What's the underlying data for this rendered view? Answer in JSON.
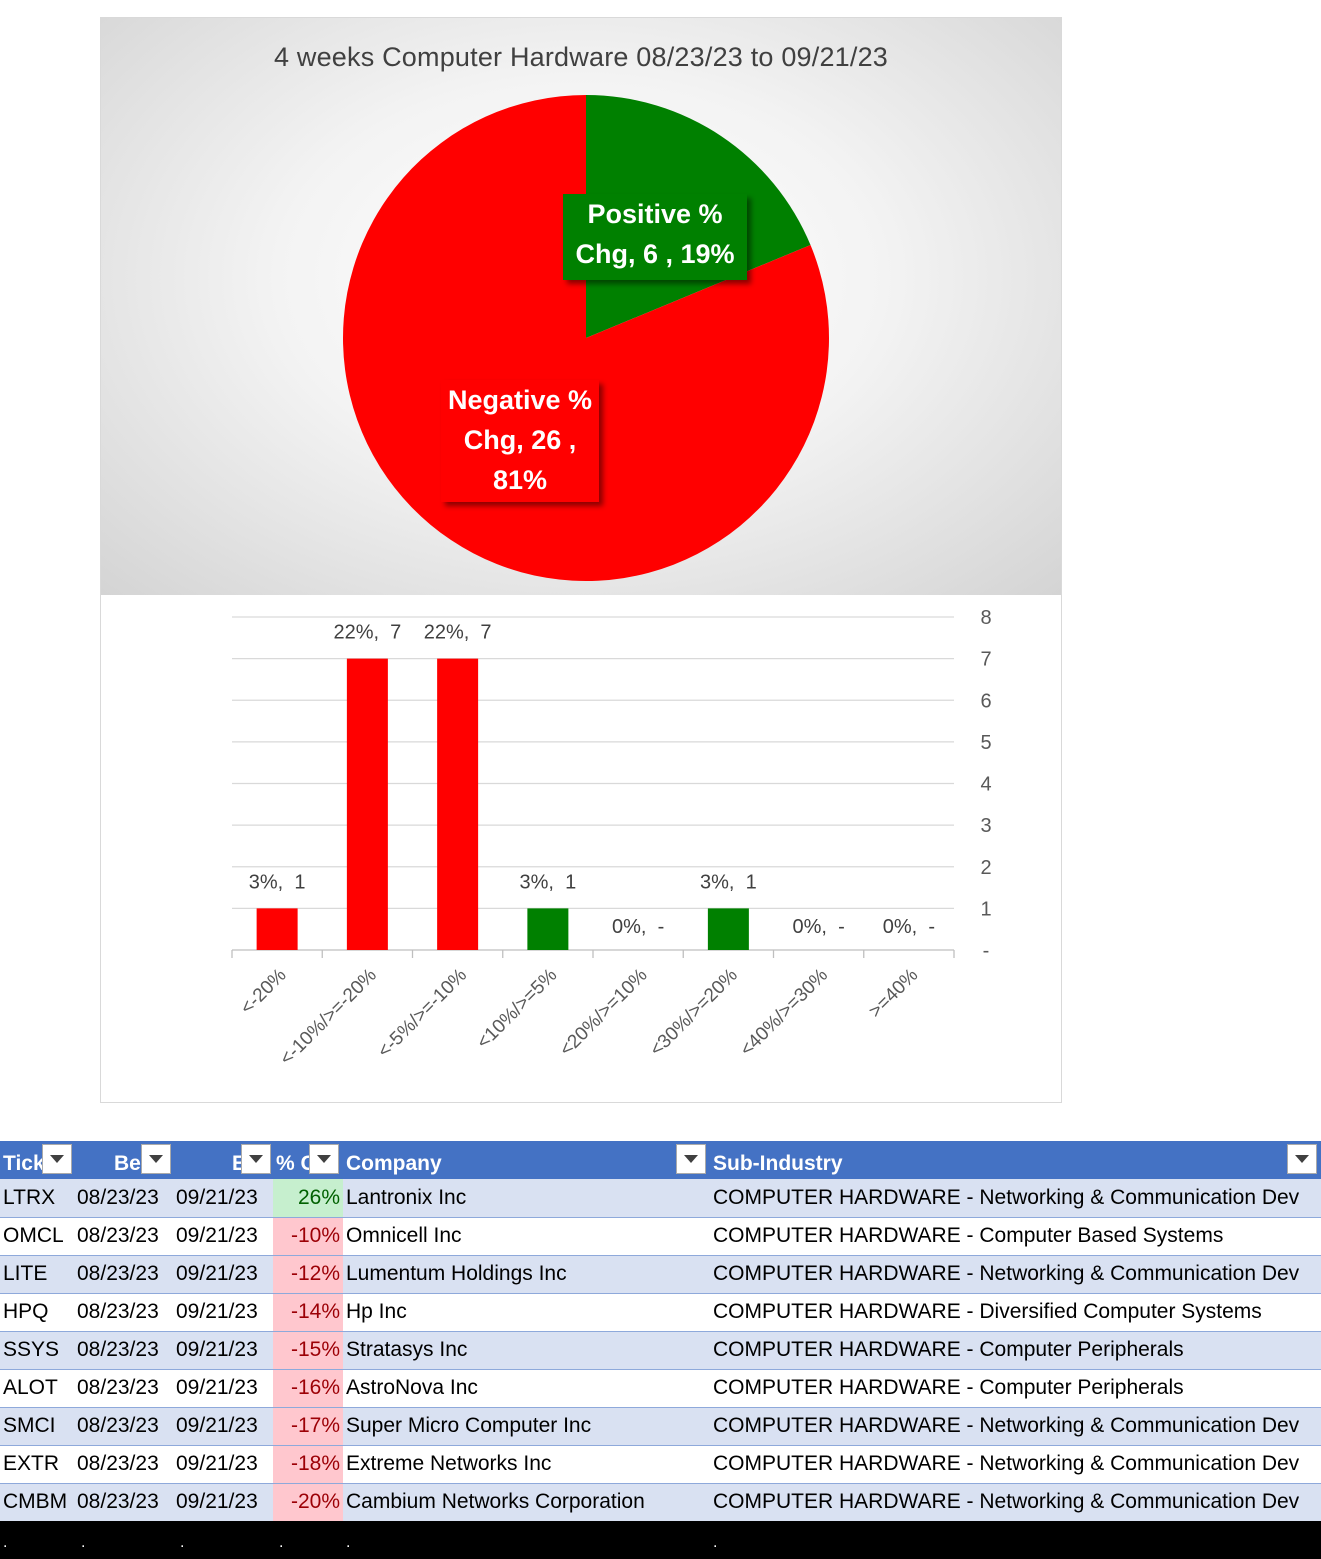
{
  "chart_data": [
    {
      "type": "pie",
      "title": "4 weeks Computer Hardware 08/23/23 to 09/21/23",
      "slices": [
        {
          "name": "Positive % Chg",
          "value": 6,
          "percent": 19,
          "color": "#008000"
        },
        {
          "name": "Negative % Chg",
          "value": 26,
          "percent": 81,
          "color": "#ff0000"
        }
      ],
      "labels": {
        "positive_line1": "Positive %",
        "positive_line2": "Chg,  6 , 19%",
        "negative_line1": "Negative %",
        "negative_line2": "Chg,  26 ,",
        "negative_line3": "81%"
      }
    },
    {
      "type": "bar",
      "categories": [
        "<-20%",
        "<-10%/>=-20%",
        "<-5%/>=-10%",
        "<10%/>=5%",
        "<20%/>=10%",
        "<30%/>=20%",
        "<40%/>=30%",
        ">=40%"
      ],
      "values": [
        1,
        7,
        7,
        1,
        0,
        1,
        0,
        0
      ],
      "percents": [
        "3%",
        "22%",
        "22%",
        "3%",
        "0%",
        "3%",
        "0%",
        "0%"
      ],
      "data_labels": [
        "3%,  1",
        "22%,  7",
        "22%,  7",
        "3%,  1",
        "0%,  -",
        "3%,  1",
        "0%,  -",
        "0%,  -"
      ],
      "colors": [
        "#ff0000",
        "#ff0000",
        "#ff0000",
        "#008000",
        "#008000",
        "#008000",
        "#008000",
        "#008000"
      ],
      "ylim": [
        0,
        8
      ],
      "yticks": [
        "-",
        "1",
        "2",
        "3",
        "4",
        "5",
        "6",
        "7",
        "8"
      ],
      "y_axis_side": "right",
      "grid": true
    }
  ],
  "table": {
    "headers": {
      "ticker": "Tick",
      "begin": "Be",
      "end": "E",
      "pct": "% C",
      "company": "Company",
      "subindustry": "Sub-Industry"
    },
    "rows": [
      {
        "ticker": "LTRX",
        "begin": "08/23/23",
        "end": "09/21/23",
        "pct": "26%",
        "sign": "pos",
        "company": "Lantronix Inc",
        "sub": "COMPUTER HARDWARE - Networking & Communication Dev"
      },
      {
        "ticker": "OMCL",
        "begin": "08/23/23",
        "end": "09/21/23",
        "pct": "-10%",
        "sign": "neg",
        "company": "Omnicell Inc",
        "sub": "COMPUTER HARDWARE - Computer Based Systems"
      },
      {
        "ticker": "LITE",
        "begin": "08/23/23",
        "end": "09/21/23",
        "pct": "-12%",
        "sign": "neg",
        "company": "Lumentum Holdings Inc",
        "sub": "COMPUTER HARDWARE - Networking & Communication Dev"
      },
      {
        "ticker": "HPQ",
        "begin": "08/23/23",
        "end": "09/21/23",
        "pct": "-14%",
        "sign": "neg",
        "company": "Hp Inc",
        "sub": "COMPUTER HARDWARE - Diversified Computer Systems"
      },
      {
        "ticker": "SSYS",
        "begin": "08/23/23",
        "end": "09/21/23",
        "pct": "-15%",
        "sign": "neg",
        "company": "Stratasys Inc",
        "sub": "COMPUTER HARDWARE - Computer Peripherals"
      },
      {
        "ticker": "ALOT",
        "begin": "08/23/23",
        "end": "09/21/23",
        "pct": "-16%",
        "sign": "neg",
        "company": "AstroNova Inc",
        "sub": "COMPUTER HARDWARE - Computer Peripherals"
      },
      {
        "ticker": "SMCI",
        "begin": "08/23/23",
        "end": "09/21/23",
        "pct": "-17%",
        "sign": "neg",
        "company": "Super Micro Computer Inc",
        "sub": "COMPUTER HARDWARE - Networking & Communication Dev"
      },
      {
        "ticker": "EXTR",
        "begin": "08/23/23",
        "end": "09/21/23",
        "pct": "-18%",
        "sign": "neg",
        "company": "Extreme Networks Inc",
        "sub": "COMPUTER HARDWARE - Networking & Communication Dev"
      },
      {
        "ticker": "CMBM",
        "begin": "08/23/23",
        "end": "09/21/23",
        "pct": "-20%",
        "sign": "neg",
        "company": "Cambium Networks Corporation",
        "sub": "COMPUTER HARDWARE - Networking & Communication Dev"
      }
    ],
    "footer_dots": [
      ".",
      ".",
      ".",
      ".",
      ".",
      "."
    ]
  }
}
